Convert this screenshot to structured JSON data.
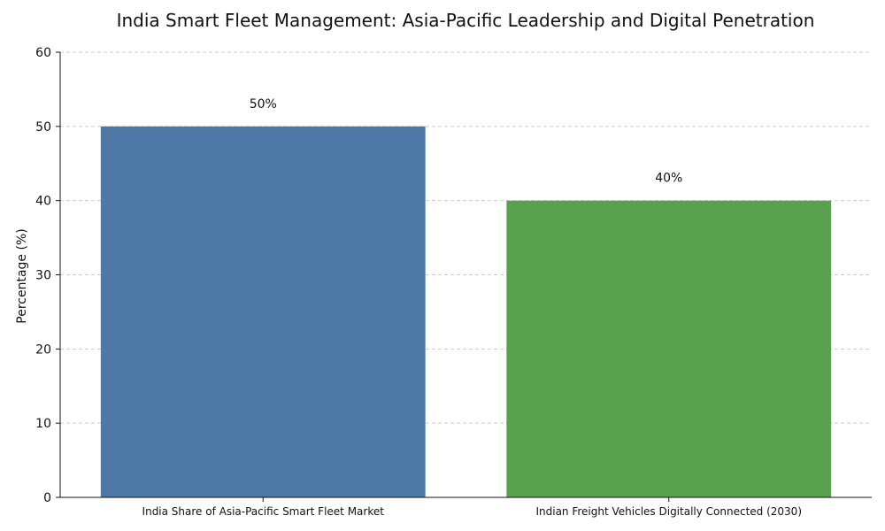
{
  "chart_data": {
    "type": "bar",
    "title": "India Smart Fleet Management: Asia-Pacific Leadership and Digital Penetration",
    "xlabel": "",
    "ylabel": "Percentage (%)",
    "categories": [
      "India Share of Asia-Pacific Smart Fleet Market",
      "Indian Freight Vehicles Digitally Connected (2030)"
    ],
    "values": [
      50,
      40
    ],
    "data_labels": [
      "50%",
      "40%"
    ],
    "colors": [
      "#4e79a7",
      "#59a14f"
    ],
    "ylim": [
      0,
      60
    ],
    "yticks": [
      0,
      10,
      20,
      30,
      40,
      50,
      60
    ],
    "grid": "horizontal-dashed",
    "legend": "none"
  }
}
